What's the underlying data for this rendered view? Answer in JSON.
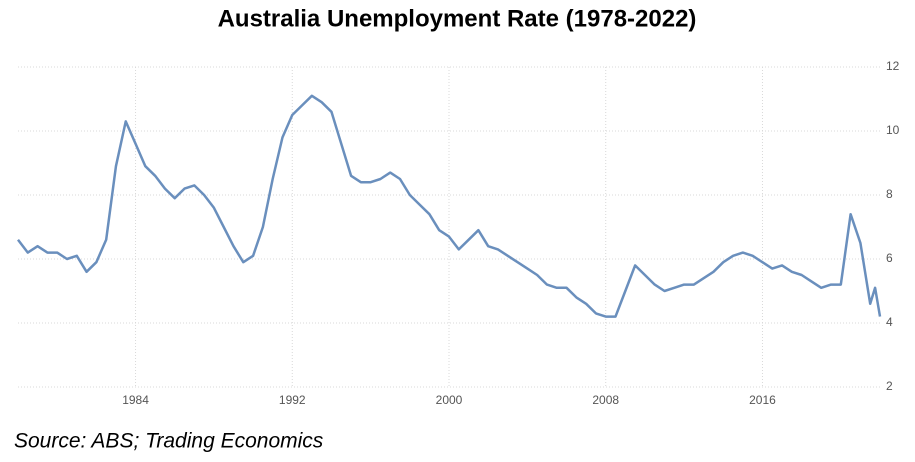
{
  "chart_data": {
    "type": "line",
    "title": "Australia Unemployment Rate (1978-2022)",
    "source": "Source: ABS; Trading Economics",
    "xlim": [
      1978,
      2022
    ],
    "xticks": [
      1984,
      1992,
      2000,
      2008,
      2016
    ],
    "ylim": [
      2,
      12
    ],
    "yticks": [
      2,
      4,
      6,
      8,
      10,
      12
    ],
    "grid": true,
    "x": [
      1978.0,
      1978.5,
      1979.0,
      1979.5,
      1980.0,
      1980.5,
      1981.0,
      1981.5,
      1982.0,
      1982.5,
      1983.0,
      1983.5,
      1984.0,
      1984.5,
      1985.0,
      1985.5,
      1986.0,
      1986.5,
      1987.0,
      1987.5,
      1988.0,
      1988.5,
      1989.0,
      1989.5,
      1990.0,
      1990.5,
      1991.0,
      1991.5,
      1992.0,
      1992.5,
      1993.0,
      1993.5,
      1994.0,
      1994.5,
      1995.0,
      1995.5,
      1996.0,
      1996.5,
      1997.0,
      1997.5,
      1998.0,
      1998.5,
      1999.0,
      1999.5,
      2000.0,
      2000.5,
      2001.0,
      2001.5,
      2002.0,
      2002.5,
      2003.0,
      2003.5,
      2004.0,
      2004.5,
      2005.0,
      2005.5,
      2006.0,
      2006.5,
      2007.0,
      2007.5,
      2008.0,
      2008.5,
      2009.0,
      2009.5,
      2010.0,
      2010.5,
      2011.0,
      2011.5,
      2012.0,
      2012.5,
      2013.0,
      2013.5,
      2014.0,
      2014.5,
      2015.0,
      2015.5,
      2016.0,
      2016.5,
      2017.0,
      2017.5,
      2018.0,
      2018.5,
      2019.0,
      2019.5,
      2020.0,
      2020.5,
      2021.0,
      2021.5,
      2021.75,
      2022.0
    ],
    "series": [
      {
        "name": "Unemployment Rate",
        "color": "#6a8fbd",
        "values": [
          6.6,
          6.2,
          6.4,
          6.2,
          6.2,
          6.0,
          6.1,
          5.6,
          5.9,
          6.6,
          8.9,
          10.3,
          9.6,
          8.9,
          8.6,
          8.2,
          7.9,
          8.2,
          8.3,
          8.0,
          7.6,
          7.0,
          6.4,
          5.9,
          6.1,
          7.0,
          8.5,
          9.8,
          10.5,
          10.8,
          11.1,
          10.9,
          10.6,
          9.6,
          8.6,
          8.4,
          8.4,
          8.5,
          8.7,
          8.5,
          8.0,
          7.7,
          7.4,
          6.9,
          6.7,
          6.3,
          6.6,
          6.9,
          6.4,
          6.3,
          6.1,
          5.9,
          5.7,
          5.5,
          5.2,
          5.1,
          5.1,
          4.8,
          4.6,
          4.3,
          4.2,
          4.2,
          5.0,
          5.8,
          5.5,
          5.2,
          5.0,
          5.1,
          5.2,
          5.2,
          5.4,
          5.6,
          5.9,
          6.1,
          6.2,
          6.1,
          5.9,
          5.7,
          5.8,
          5.6,
          5.5,
          5.3,
          5.1,
          5.2,
          5.2,
          7.4,
          6.5,
          4.6,
          5.1,
          4.2
        ]
      }
    ]
  }
}
